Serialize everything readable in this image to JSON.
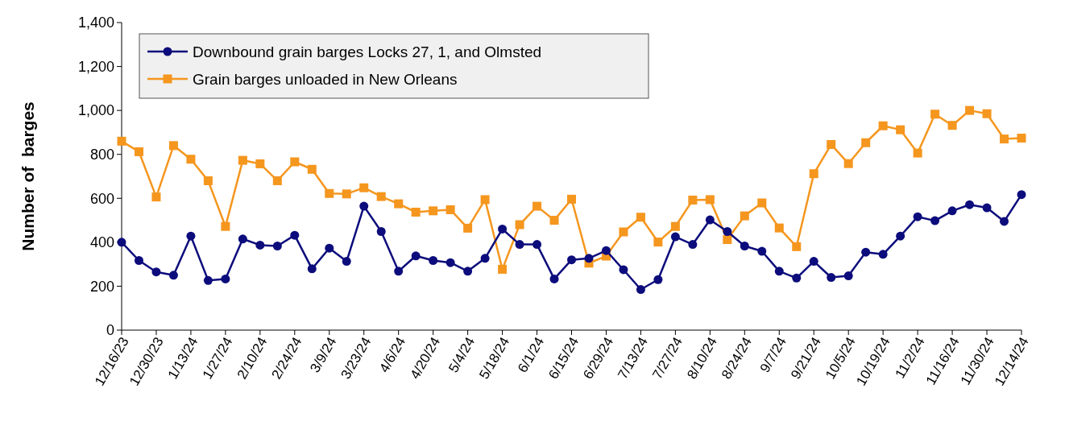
{
  "chart_data": {
    "type": "line",
    "ylabel": "Number of  barges",
    "categories": [
      "12/16/23",
      null,
      "12/30/23",
      null,
      "1/13/24",
      null,
      "1/27/24",
      null,
      "2/10/24",
      null,
      "2/24/24",
      null,
      "3/9/24",
      null,
      "3/23/24",
      null,
      "4/6/24",
      null,
      "4/20/24",
      null,
      "5/4/24",
      null,
      "5/18/24",
      null,
      "6/1/24",
      null,
      "6/15/24",
      null,
      "6/29/24",
      null,
      "7/13/24",
      null,
      "7/27/24",
      null,
      "8/10/24",
      null,
      "8/24/24",
      null,
      "9/7/24",
      null,
      "9/21/24",
      null,
      "10/5/24",
      null,
      "10/19/24",
      null,
      "11/2/24",
      null,
      "11/16/24",
      null,
      "11/30/24",
      null,
      "12/14/24"
    ],
    "series": [
      {
        "name": "Downbound grain barges Locks 27, 1, and Olmsted",
        "color": "#0c0c7c",
        "marker": "circle",
        "values": [
          400,
          317,
          265,
          250,
          428,
          226,
          233,
          415,
          387,
          383,
          432,
          279,
          373,
          313,
          564,
          449,
          268,
          338,
          317,
          307,
          268,
          327,
          460,
          390,
          390,
          233,
          320,
          327,
          362,
          275,
          185,
          230,
          425,
          390,
          502,
          449,
          383,
          359,
          268,
          237,
          313,
          240,
          247,
          355,
          345,
          428,
          516,
          498,
          543,
          571,
          557,
          495,
          617
        ]
      },
      {
        "name": "Grain barges unloaded in New Orleans",
        "color": "#f5961e",
        "marker": "square",
        "values": [
          860,
          812,
          606,
          840,
          778,
          680,
          472,
          773,
          757,
          680,
          766,
          732,
          622,
          620,
          648,
          608,
          575,
          537,
          543,
          548,
          464,
          594,
          277,
          480,
          564,
          500,
          596,
          305,
          337,
          447,
          514,
          401,
          472,
          592,
          594,
          412,
          520,
          579,
          465,
          380,
          712,
          845,
          758,
          853,
          930,
          912,
          806,
          983,
          932,
          1000,
          985,
          870,
          874
        ]
      }
    ],
    "ylim": [
      0,
      1400
    ],
    "yticks": [
      0,
      200,
      400,
      600,
      800,
      {
        "value": 1000,
        "label": "1,000"
      },
      {
        "value": 1200,
        "label": "1,200"
      },
      {
        "value": 1400,
        "label": "1,400"
      }
    ],
    "grid": false,
    "legend": "top left",
    "line_style": "solid"
  }
}
